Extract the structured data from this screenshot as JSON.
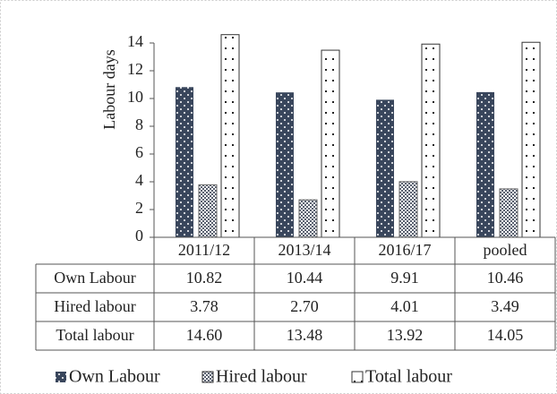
{
  "chart_data": {
    "type": "bar",
    "y_label": "Labour days",
    "categories": [
      "2011/12",
      "2013/14",
      "2016/17",
      "pooled"
    ],
    "series": [
      {
        "name": "Own Labour",
        "color": "#39465c",
        "values": [
          10.82,
          10.44,
          9.91,
          10.46
        ],
        "value_labels": [
          "10.82",
          "10.44",
          "9.91",
          "10.46"
        ]
      },
      {
        "name": "Hired labour",
        "color": "#5a6170",
        "values": [
          3.78,
          2.7,
          4.01,
          3.49
        ],
        "value_labels": [
          "3.78",
          "2.70",
          "4.01",
          "3.49"
        ]
      },
      {
        "name": "Total labour",
        "color": "#222222",
        "values": [
          14.6,
          13.48,
          13.92,
          14.05
        ],
        "value_labels": [
          "14.60",
          "13.48",
          "13.92",
          "14.05"
        ]
      }
    ],
    "ylim": [
      0,
      14
    ],
    "yticks": [
      0,
      2,
      4,
      6,
      8,
      10,
      12,
      14
    ],
    "grid": false,
    "data_table": true
  }
}
